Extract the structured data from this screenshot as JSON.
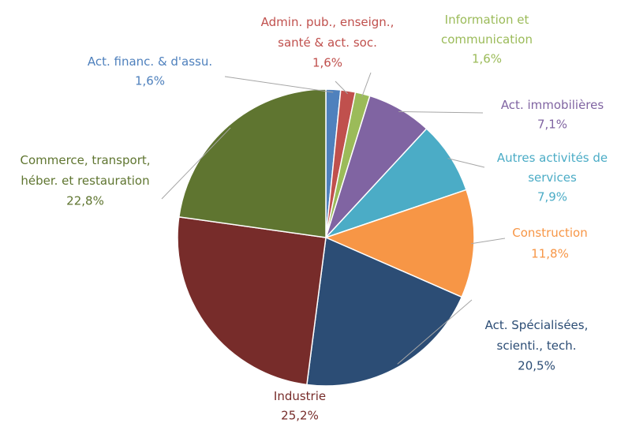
{
  "chart_data": {
    "type": "pie",
    "categories": [
      "Act. financ. & d'assu.",
      "Admin. pub., enseign.,\nsanté & act. soc.",
      "Information et\ncommunication",
      "Act. immobilières",
      "Autres activités de\nservices",
      "Construction",
      "Act. Spécialisées,\nscienti., tech.",
      "Industrie",
      "Commerce, transport,\nhéber. et restauration"
    ],
    "values": [
      1.6,
      1.6,
      1.6,
      7.1,
      7.9,
      11.8,
      20.5,
      25.2,
      22.8
    ],
    "value_labels": [
      "1,6%",
      "1,6%",
      "1,6%",
      "7,1%",
      "7,9%",
      "11,8%",
      "20,5%",
      "25,2%",
      "22,8%"
    ],
    "colors": [
      "#4f81bd",
      "#c0504d",
      "#9bbb59",
      "#8064a2",
      "#4bacc6",
      "#f79646",
      "#2c4d75",
      "#772c2a",
      "#5f7530"
    ]
  }
}
